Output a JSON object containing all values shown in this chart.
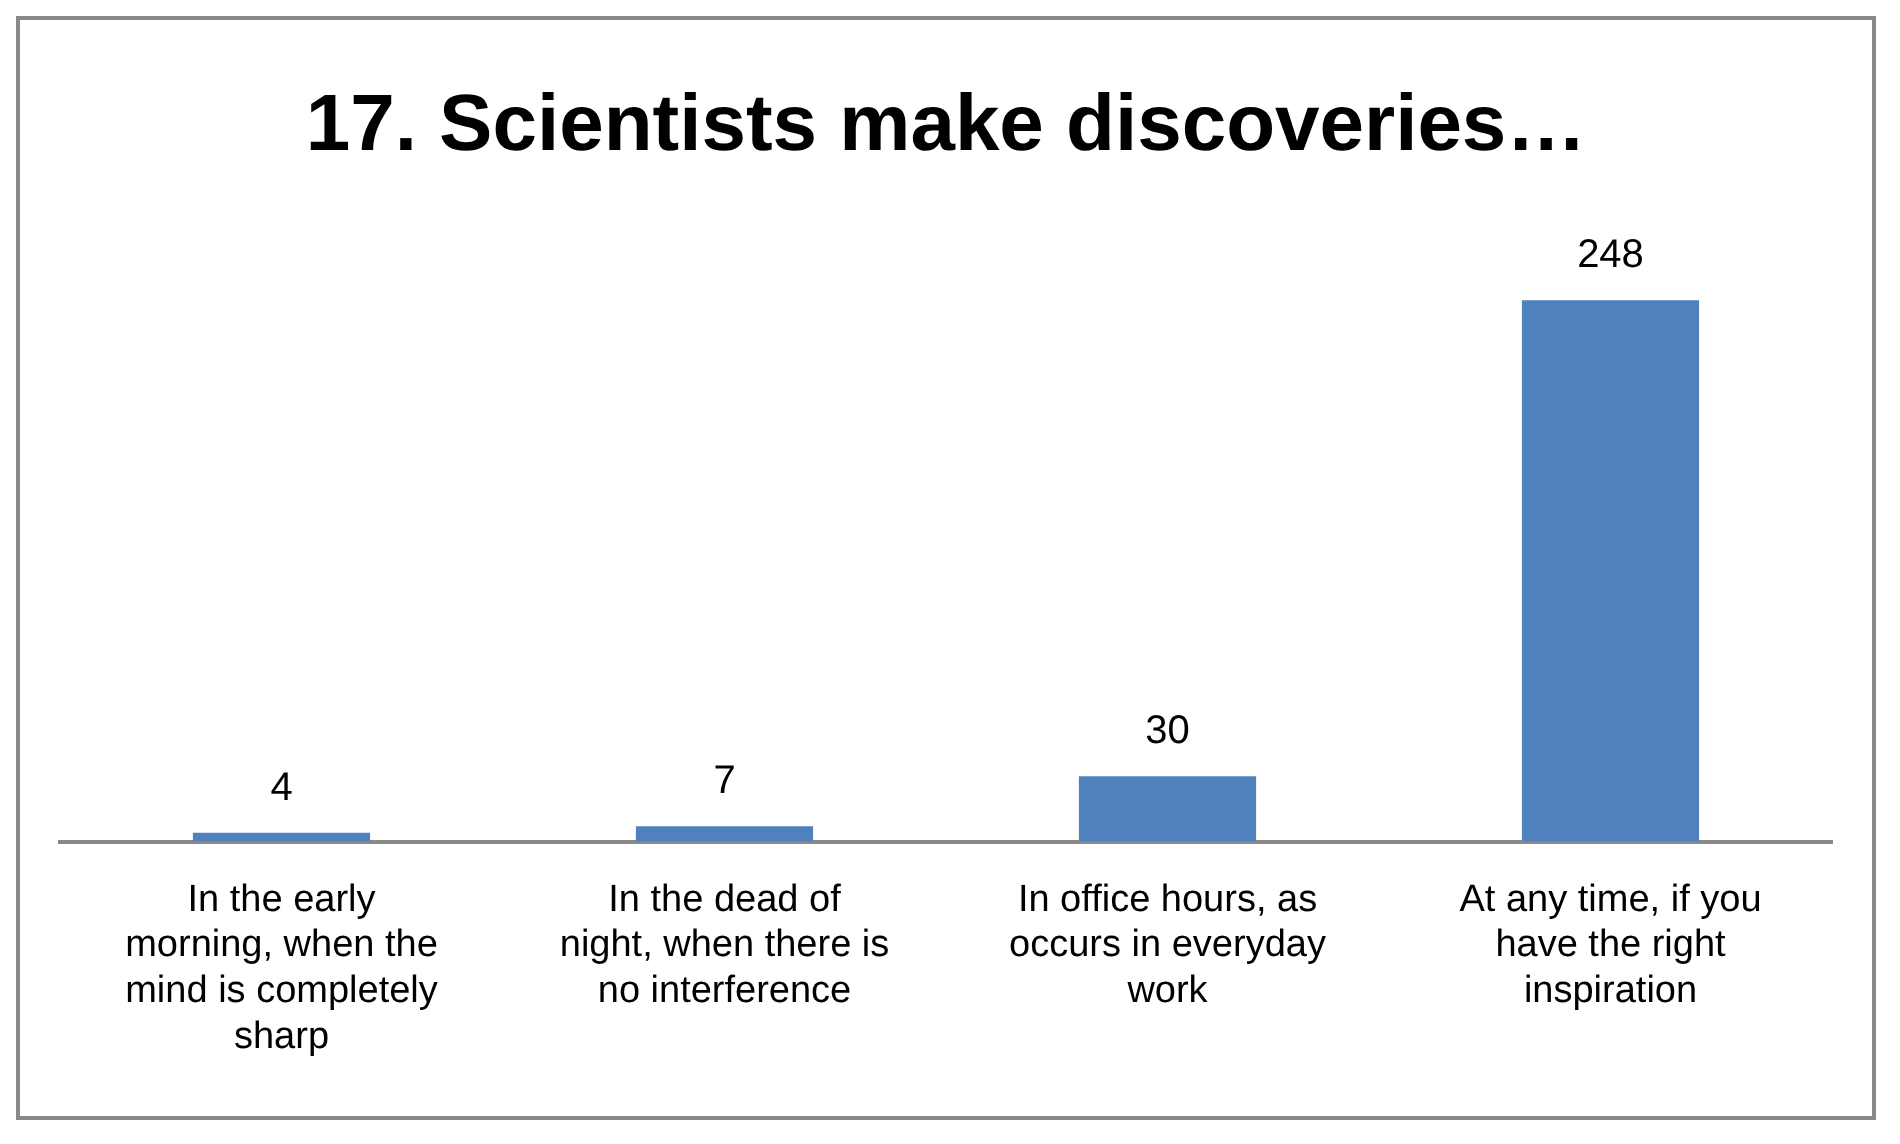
{
  "chart_data": {
    "type": "bar",
    "title": "17. Scientists make discoveries…",
    "categories": [
      "In the early morning, when the mind is completely sharp",
      "In the dead of night, when there is no interference",
      "In office hours, as occurs in everyday work",
      "At any time, if you have the right inspiration"
    ],
    "values": [
      4,
      7,
      30,
      248
    ],
    "color": "#4f81bd",
    "data_labels": true,
    "grid": false,
    "legend": false
  }
}
